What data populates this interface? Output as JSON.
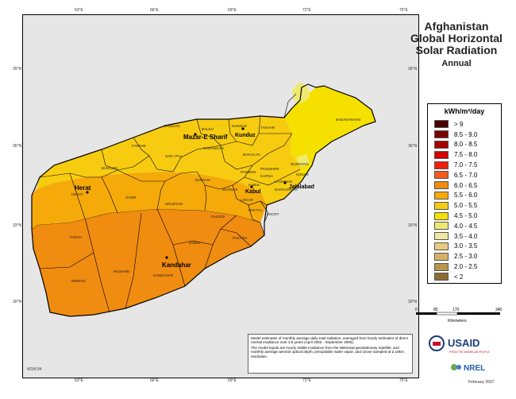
{
  "title": {
    "lines": [
      "Afghanistan",
      "Global Horizontal",
      "Solar Radiation"
    ],
    "subtitle": "Annual"
  },
  "ticks": {
    "lon_top": [
      "63°E",
      "66°E",
      "69°E",
      "72°E",
      "75°E"
    ],
    "lon_bottom": [
      "63°E",
      "66°E",
      "69°E",
      "72°E",
      "75°E"
    ],
    "lat_left": [
      "39°N",
      "36°N",
      "33°N",
      "30°N"
    ],
    "lat_right": [
      "39°N",
      "36°N",
      "33°N",
      "30°N"
    ]
  },
  "legend": {
    "title": "kWh/m²/day",
    "classes": [
      {
        "label": "> 9",
        "color": "#4a0000"
      },
      {
        "label": "8.5 - 9.0",
        "color": "#7a0000"
      },
      {
        "label": "8.0 - 8.5",
        "color": "#a80000"
      },
      {
        "label": "7.5 - 8.0",
        "color": "#d40000"
      },
      {
        "label": "7.0 - 7.5",
        "color": "#f01e0a"
      },
      {
        "label": "6.5 - 7.0",
        "color": "#f75a1e"
      },
      {
        "label": "6.0 - 6.5",
        "color": "#f08c10"
      },
      {
        "label": "5.5 - 6.0",
        "color": "#f5aa0a"
      },
      {
        "label": "5.0 - 5.5",
        "color": "#f7cc10"
      },
      {
        "label": "4.5 - 5.0",
        "color": "#f5e000"
      },
      {
        "label": "4.0 - 4.5",
        "color": "#eeea70"
      },
      {
        "label": "3.5 - 4.0",
        "color": "#f0e8a0"
      },
      {
        "label": "3.0 - 3.5",
        "color": "#e6cc80"
      },
      {
        "label": "2.5 - 3.0",
        "color": "#d6b068"
      },
      {
        "label": "2.0 - 2.5",
        "color": "#b8944c"
      },
      {
        "label": "< 2",
        "color": "#8c6c34"
      }
    ]
  },
  "scale": {
    "ticks": [
      "0",
      "85",
      "170",
      "340"
    ],
    "unit": "Kilometers"
  },
  "cities": [
    {
      "name": "Herat"
    },
    {
      "name": "Mazar-E Sharif"
    },
    {
      "name": "Kunduz"
    },
    {
      "name": "Kabul"
    },
    {
      "name": "Jalalabad"
    },
    {
      "name": "Kandahar"
    }
  ],
  "provinces": [
    "JAWZJAN",
    "BALKH",
    "KUNDUZ",
    "TAKHAR",
    "BADAKHSHAN",
    "FARYAB",
    "SAMANGAN",
    "BAGHLAN",
    "SAR-I PUL",
    "BADGHIS",
    "PARWAN",
    "PANJSHER",
    "NURISTAN",
    "KUNAR",
    "BAMYAN",
    "KAPISA",
    "LAGHMAN",
    "HERAT",
    "GHOR",
    "WARDAK",
    "KABUL",
    "NANGARHAR",
    "LOGAR",
    "PAKTYA",
    "KHOST",
    "URUZGAN",
    "GHAZNI",
    "FARAH",
    "ZABUL",
    "PAKTIKA",
    "HILMAND",
    "NIMROZ",
    "KANDAHAR"
  ],
  "description": [
    "Model estimates of monthly average daily total radiation, averaged from hourly estimates of direct normal irradiance over 3.5 years (April 2002 - September 2005).",
    "The model inputs are hourly visible irradiance from the Meteosat geostationary satellite, and monthly average aerosol optical depth, precipitable water vapor, and ozone sampled at a 10km resolution."
  ],
  "code": "W3/8.84",
  "logos": {
    "usaid": "USAID",
    "usaid_tagline": "FROM THE AMERICAN PEOPLE",
    "nrel": "NREL"
  },
  "date": "February 2007"
}
